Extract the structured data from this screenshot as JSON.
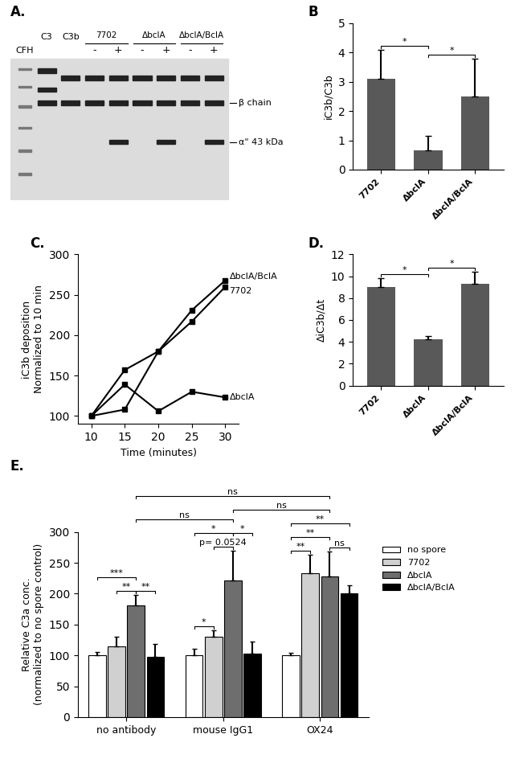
{
  "chart_data": [
    {
      "type": "blot",
      "title": "A.",
      "row_label": "CFH",
      "lanes": [
        {
          "label": "C3"
        },
        {
          "label": "C3b"
        },
        {
          "label": "-",
          "group": "7702"
        },
        {
          "label": "+",
          "group": "7702"
        },
        {
          "label": "-",
          "group": "ΔbclA"
        },
        {
          "label": "+",
          "group": "ΔbclA"
        },
        {
          "label": "-",
          "group": "ΔbclA/BclA"
        },
        {
          "label": "+",
          "group": "ΔbclA/BclA"
        }
      ],
      "bands": [
        {
          "label": null,
          "lanes": [
            true,
            false,
            false,
            false,
            false,
            false,
            false,
            false
          ]
        },
        {
          "label": null,
          "lanes": [
            false,
            true,
            true,
            true,
            true,
            true,
            true,
            true
          ]
        },
        {
          "label": null,
          "lanes": [
            true,
            false,
            false,
            false,
            false,
            false,
            false,
            false
          ]
        },
        {
          "label": "β chain",
          "lanes": [
            true,
            true,
            true,
            true,
            true,
            true,
            true,
            true
          ]
        },
        {
          "label": "α\" 43 kDa",
          "lanes": [
            false,
            false,
            false,
            true,
            false,
            true,
            false,
            true
          ]
        }
      ]
    },
    {
      "type": "bar",
      "title": "B",
      "y_label": "iC3b/C3b",
      "categories": [
        "7702",
        "ΔbclA",
        "ΔbclA/BclA"
      ],
      "values": [
        3.1,
        0.65,
        2.5
      ],
      "errors": [
        1.0,
        0.5,
        1.3
      ],
      "color": "#595959",
      "ylim": [
        0,
        5
      ],
      "yticks": [
        0,
        1,
        2,
        3,
        4,
        5
      ],
      "annotations": [
        {
          "between": [
            "7702",
            "ΔbclA"
          ],
          "text": "*"
        },
        {
          "between": [
            "ΔbclA",
            "ΔbclA/BclA"
          ],
          "text": "*"
        }
      ]
    },
    {
      "type": "line",
      "title": "C.",
      "x_label": "Time (minutes)",
      "y_label": "iC3b deposition\nNormalized to 10 min",
      "x": [
        10,
        15,
        20,
        25,
        30
      ],
      "series": [
        {
          "name": "7702",
          "color": "#000000",
          "marker": "square",
          "values": [
            100,
            157,
            180,
            217,
            260
          ]
        },
        {
          "name": "ΔbclA",
          "color": "#000000",
          "marker": "square",
          "values": [
            100,
            139,
            106,
            130,
            123
          ]
        },
        {
          "name": "ΔbclA/BclA",
          "color": "#000000",
          "marker": "square",
          "values": [
            100,
            108,
            180,
            231,
            268
          ]
        }
      ],
      "xlim": [
        8,
        32
      ],
      "xticks": [
        10,
        15,
        20,
        25,
        30
      ],
      "ylim": [
        90,
        300
      ],
      "yticks": [
        100,
        150,
        200,
        250,
        300
      ]
    },
    {
      "type": "bar",
      "title": "D.",
      "y_label": "ΔiC3b/Δt",
      "categories": [
        "7702",
        "ΔbclA",
        "ΔbclA/BclA"
      ],
      "values": [
        9.0,
        4.2,
        9.3
      ],
      "errors": [
        0.8,
        0.35,
        1.1
      ],
      "color": "#595959",
      "ylim": [
        0,
        12
      ],
      "yticks": [
        0,
        2,
        4,
        6,
        8,
        10,
        12
      ],
      "annotations": [
        {
          "between": [
            "7702",
            "ΔbclA"
          ],
          "text": "*"
        },
        {
          "between": [
            "ΔbclA",
            "ΔbclA/BclA"
          ],
          "text": "*"
        }
      ]
    },
    {
      "type": "grouped_bar",
      "title": "E.",
      "y_label": "Relative C3a conc.\n(normalized to no spore control)",
      "categories": [
        "no antibody",
        "mouse IgG1",
        "OX24"
      ],
      "series": [
        {
          "name": "no spore",
          "color": "#ffffff",
          "values": [
            100,
            100,
            100
          ],
          "errors": [
            6,
            10,
            4
          ]
        },
        {
          "name": "7702",
          "color": "#d0d0d0",
          "values": [
            115,
            130,
            233
          ],
          "errors": [
            15,
            10,
            30
          ]
        },
        {
          "name": "ΔbclA",
          "color": "#6e6e6e",
          "values": [
            181,
            222,
            228
          ],
          "errors": [
            17,
            48,
            40
          ]
        },
        {
          "name": "ΔbclA/BclA",
          "color": "#000000",
          "values": [
            98,
            103,
            201
          ],
          "errors": [
            20,
            20,
            12
          ]
        }
      ],
      "ylim": [
        0,
        300
      ],
      "yticks": [
        0,
        50,
        100,
        150,
        200,
        250,
        300
      ],
      "legend": "right",
      "annotations": [
        {
          "from": {
            "group": "no antibody",
            "series": "7702"
          },
          "to": {
            "group": "no antibody",
            "series": "ΔbclA"
          },
          "text": "**"
        },
        {
          "from": {
            "group": "no antibody",
            "series": "ΔbclA"
          },
          "to": {
            "group": "no antibody",
            "series": "ΔbclA/BclA"
          },
          "text": "**"
        },
        {
          "from": {
            "group": "no antibody",
            "series": "no spore"
          },
          "to": {
            "group": "no antibody",
            "series": "ΔbclA"
          },
          "text": "***"
        },
        {
          "from": {
            "group": "mouse IgG1",
            "series": "no spore"
          },
          "to": {
            "group": "mouse IgG1",
            "series": "7702"
          },
          "text": "*"
        },
        {
          "from": {
            "group": "mouse IgG1",
            "series": "7702"
          },
          "to": {
            "group": "mouse IgG1",
            "series": "ΔbclA"
          },
          "text": "p= 0.0524"
        },
        {
          "from": {
            "group": "mouse IgG1",
            "series": "ΔbclA"
          },
          "to": {
            "group": "mouse IgG1",
            "series": "ΔbclA/BclA"
          },
          "text": "*"
        },
        {
          "from": {
            "group": "mouse IgG1",
            "series": "no spore"
          },
          "to": {
            "group": "mouse IgG1",
            "series": "ΔbclA"
          },
          "text": "*"
        },
        {
          "from": {
            "group": "OX24",
            "series": "no spore"
          },
          "to": {
            "group": "OX24",
            "series": "7702"
          },
          "text": "**"
        },
        {
          "from": {
            "group": "OX24",
            "series": "ΔbclA"
          },
          "to": {
            "group": "OX24",
            "series": "ΔbclA/BclA"
          },
          "text": "ns"
        },
        {
          "from": {
            "group": "OX24",
            "series": "no spore"
          },
          "to": {
            "group": "OX24",
            "series": "ΔbclA"
          },
          "text": "**"
        },
        {
          "from": {
            "group": "OX24",
            "series": "no spore"
          },
          "to": {
            "group": "OX24",
            "series": "ΔbclA/BclA"
          },
          "text": "**"
        },
        {
          "from": {
            "group": "no antibody",
            "series": "ΔbclA"
          },
          "to": {
            "group": "mouse IgG1",
            "series": "ΔbclA"
          },
          "text": "ns"
        },
        {
          "from": {
            "group": "mouse IgG1",
            "series": "ΔbclA"
          },
          "to": {
            "group": "OX24",
            "series": "ΔbclA"
          },
          "text": "ns"
        },
        {
          "from": {
            "group": "no antibody",
            "series": "ΔbclA"
          },
          "to": {
            "group": "OX24",
            "series": "ΔbclA"
          },
          "text": "ns"
        }
      ]
    }
  ]
}
